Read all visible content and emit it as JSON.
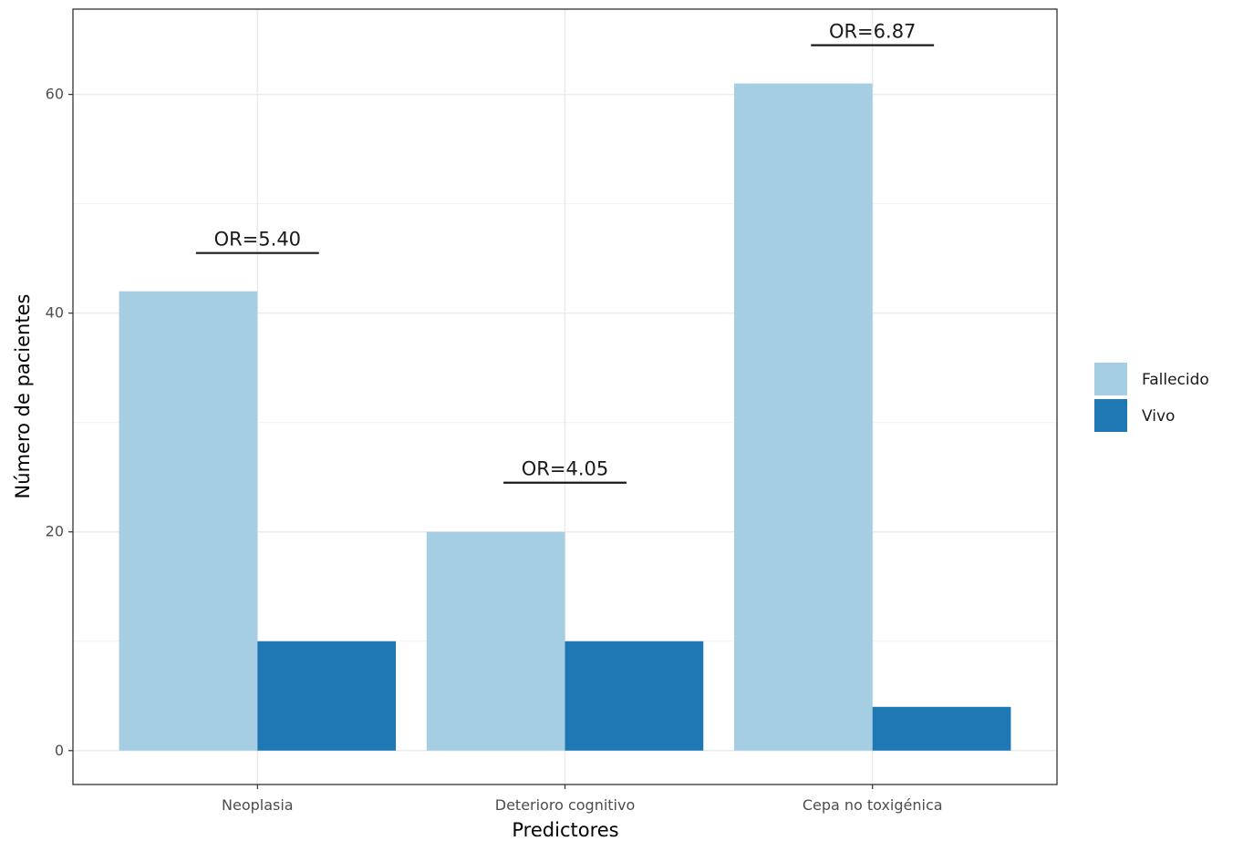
{
  "chart_data": {
    "type": "bar",
    "xlabel": "Predictores",
    "ylabel": "Número de pacientes",
    "categories": [
      "Neoplasia",
      "Deterioro cognitivo",
      "Cepa no toxigénica"
    ],
    "series": [
      {
        "name": "Fallecido",
        "color": "#a6cee3",
        "values": [
          42,
          20,
          61
        ]
      },
      {
        "name": "Vivo",
        "color": "#1f78b4",
        "values": [
          10,
          10,
          4
        ]
      }
    ],
    "yticks": [
      0,
      20,
      40,
      60
    ],
    "ylim": [
      -3.1,
      67.8
    ],
    "grid": true,
    "legend": "right",
    "annotations": [
      {
        "category": "Neoplasia",
        "text": "OR=5.40",
        "y": 45.5
      },
      {
        "category": "Deterioro cognitivo",
        "text": "OR=4.05",
        "y": 24.5
      },
      {
        "category": "Cepa no toxigénica",
        "text": "OR=6.87",
        "y": 64.5
      }
    ]
  }
}
